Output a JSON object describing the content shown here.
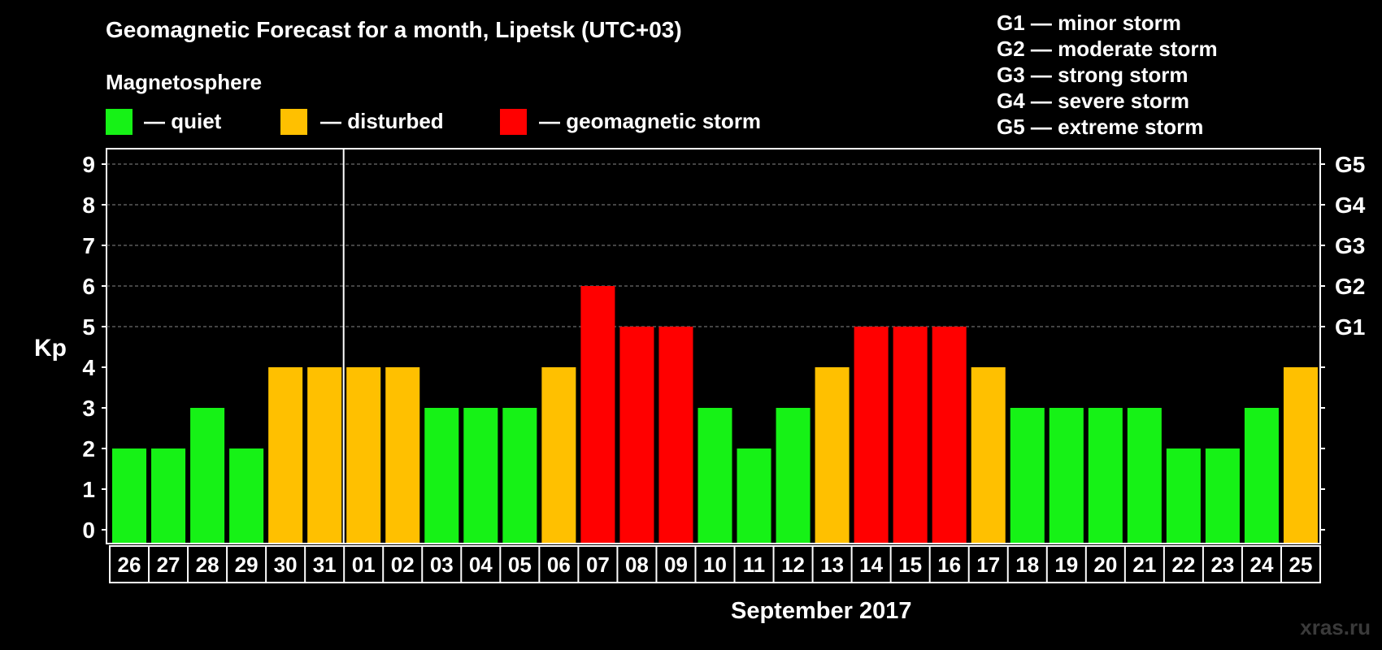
{
  "title": "Geomagnetic Forecast for a month, Lipetsk (UTC+03)",
  "subtitle": "Magnetosphere",
  "legend": [
    {
      "label": "— quiet",
      "color": "#16f216"
    },
    {
      "label": "— disturbed",
      "color": "#ffc000"
    },
    {
      "label": "— geomagnetic storm",
      "color": "#ff0000"
    }
  ],
  "g_scale": [
    "G1 — minor storm",
    "G2 — moderate storm",
    "G3 — strong storm",
    "G4 — severe storm",
    "G5 — extreme storm"
  ],
  "watermark": "xras.ru",
  "colors": {
    "quiet": "#16f216",
    "disturbed": "#ffc000",
    "storm": "#ff0000",
    "background": "#000000",
    "grid": "#888888"
  },
  "chart_data": {
    "type": "bar",
    "ylabel": "Kp",
    "xlabel": "September 2017",
    "ylim": [
      0,
      9
    ],
    "yticks": [
      0,
      1,
      2,
      3,
      4,
      5,
      6,
      7,
      8,
      9
    ],
    "right_axis": [
      {
        "value": 5,
        "label": "G1"
      },
      {
        "value": 6,
        "label": "G2"
      },
      {
        "value": 7,
        "label": "G3"
      },
      {
        "value": 8,
        "label": "G4"
      },
      {
        "value": 9,
        "label": "G5"
      }
    ],
    "grid": true,
    "categories": [
      "26",
      "27",
      "28",
      "29",
      "30",
      "31",
      "01",
      "02",
      "03",
      "04",
      "05",
      "06",
      "07",
      "08",
      "09",
      "10",
      "11",
      "12",
      "13",
      "14",
      "15",
      "16",
      "17",
      "18",
      "19",
      "20",
      "21",
      "22",
      "23",
      "24",
      "25"
    ],
    "values": [
      2,
      2,
      3,
      2,
      4,
      4,
      4,
      4,
      3,
      3,
      3,
      4,
      6,
      5,
      5,
      3,
      2,
      3,
      4,
      5,
      5,
      5,
      4,
      3,
      3,
      3,
      3,
      2,
      2,
      3,
      4
    ],
    "month_separator_before": "01"
  }
}
